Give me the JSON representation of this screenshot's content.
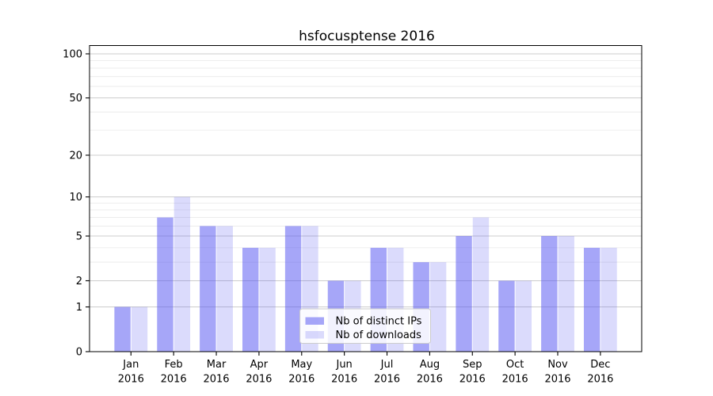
{
  "title": "hsfocusptense 2016",
  "chart_data": {
    "type": "bar",
    "title": "hsfocusptense 2016",
    "categories": [
      "Jan",
      "Feb",
      "Mar",
      "Apr",
      "May",
      "Jun",
      "Jul",
      "Aug",
      "Sep",
      "Oct",
      "Nov",
      "Dec"
    ],
    "category_year": "2016",
    "series": [
      {
        "name": "Nb of distinct IPs",
        "color": "rgba(77,77,242,0.5)",
        "values": [
          1,
          7,
          6,
          4,
          6,
          2,
          4,
          3,
          5,
          2,
          5,
          4
        ]
      },
      {
        "name": "Nb of downloads",
        "color": "rgba(77,77,242,0.2)",
        "values": [
          1,
          10,
          6,
          4,
          6,
          2,
          4,
          3,
          7,
          2,
          5,
          4
        ]
      }
    ],
    "yscale": "log1p",
    "ylim": [
      0,
      115
    ],
    "y_major_ticks": [
      0,
      1,
      2,
      5,
      10,
      20,
      50,
      100
    ],
    "y_minor_gridlines": [
      3,
      4,
      6,
      7,
      8,
      9,
      30,
      40,
      60,
      70,
      80,
      90
    ],
    "grid": true,
    "legend_position": "lower-center-inside"
  },
  "colors": {
    "background": "#ffffff",
    "axis": "#000000",
    "text": "#000000",
    "grid_major": "#cccccc",
    "grid_minor": "#e9e9e9",
    "legend_background": "rgba(255,255,255,0.85)",
    "legend_border": "#cccccc"
  }
}
